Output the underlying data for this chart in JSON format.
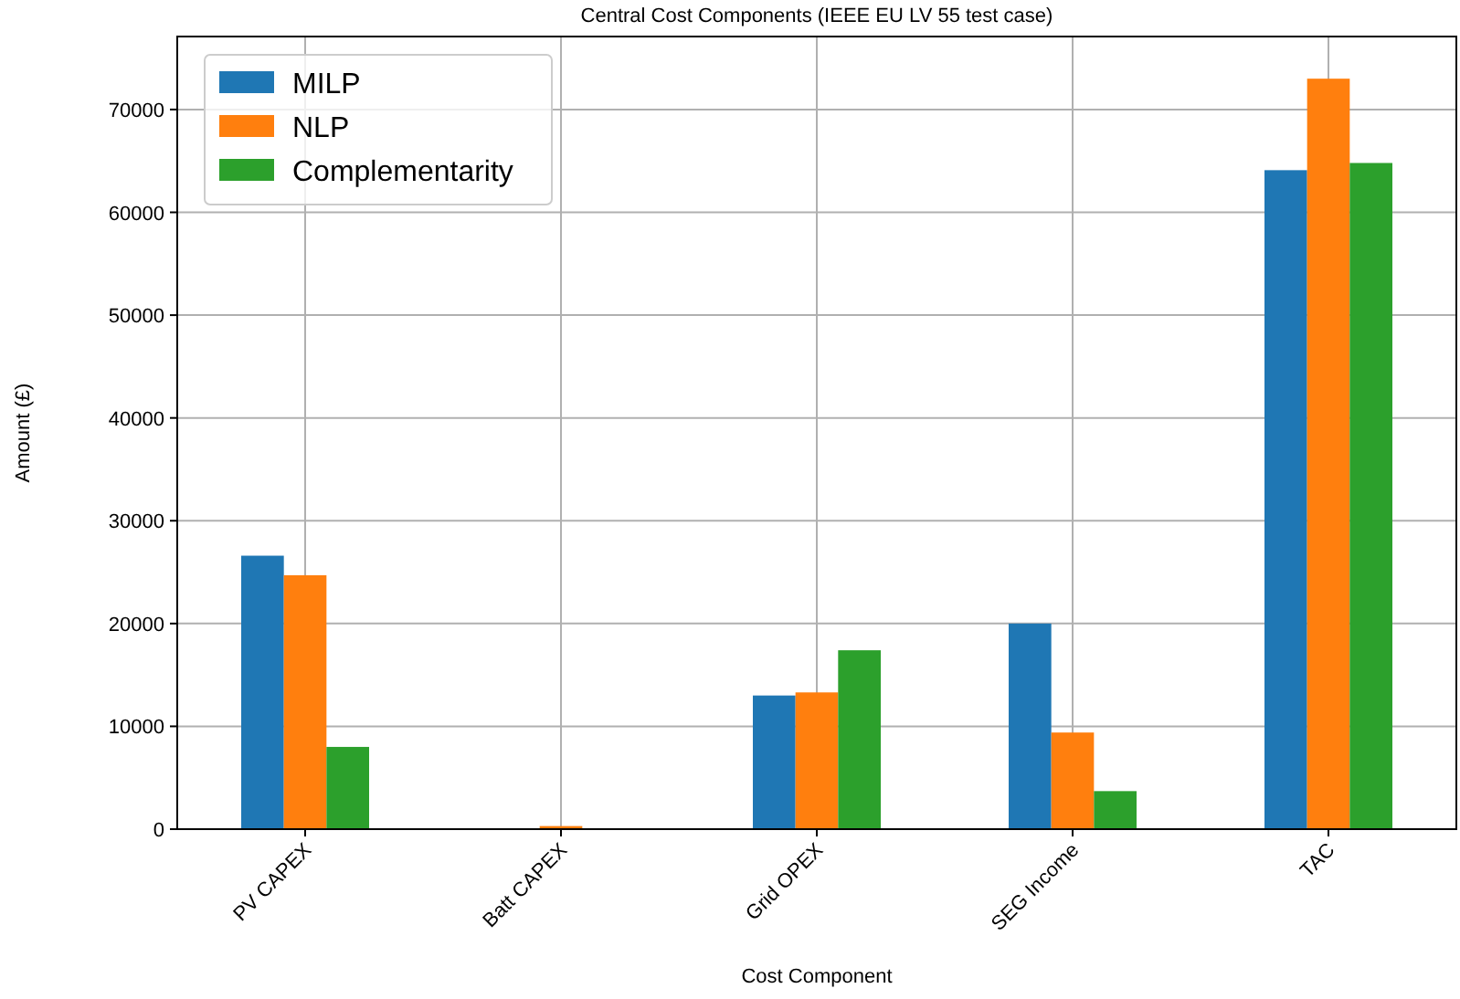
{
  "chart_data": {
    "type": "bar",
    "title": "Central Cost Components (IEEE EU LV 55 test case)",
    "xlabel": "Cost Component",
    "ylabel": "Amount (£)",
    "categories": [
      "PV CAPEX",
      "Batt CAPEX",
      "Grid OPEX",
      "SEG Income",
      "TAC"
    ],
    "series": [
      {
        "name": "MILP",
        "color": "#1f77b4",
        "values": [
          26600,
          null,
          13000,
          20000,
          64100
        ]
      },
      {
        "name": "NLP",
        "color": "#ff7f0e",
        "values": [
          24700,
          300,
          13300,
          9400,
          73000
        ]
      },
      {
        "name": "Complementarity",
        "color": "#2ca02c",
        "values": [
          8000,
          null,
          17400,
          3700,
          64800
        ]
      }
    ],
    "ylim": [
      0,
      77100
    ],
    "yticks": [
      0,
      10000,
      20000,
      30000,
      40000,
      50000,
      60000,
      70000
    ],
    "grid": true,
    "legend": "top left"
  }
}
